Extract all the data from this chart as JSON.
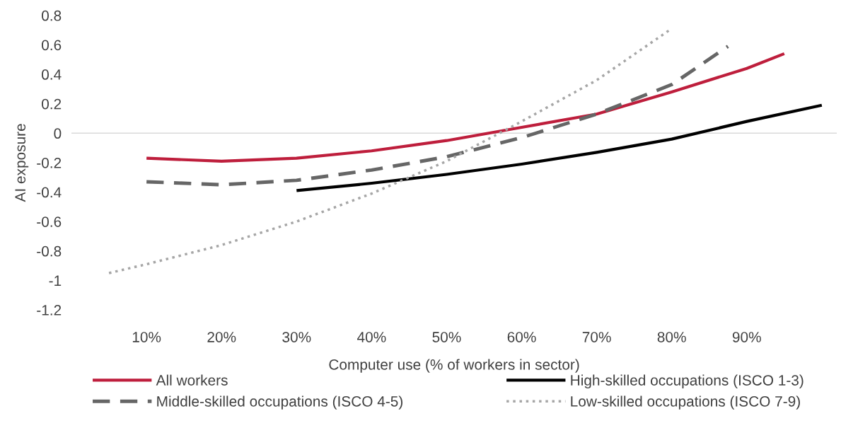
{
  "chart_data": {
    "type": "line",
    "xlabel": "Computer use (% of workers in sector)",
    "ylabel": "AI exposure",
    "xlim": [
      0,
      102
    ],
    "ylim": [
      -1.2,
      0.8
    ],
    "xticks": [
      {
        "value": 10,
        "label": "10%"
      },
      {
        "value": 20,
        "label": "20%"
      },
      {
        "value": 30,
        "label": "30%"
      },
      {
        "value": 40,
        "label": "40%"
      },
      {
        "value": 50,
        "label": "50%"
      },
      {
        "value": 60,
        "label": "60%"
      },
      {
        "value": 70,
        "label": "70%"
      },
      {
        "value": 80,
        "label": "80%"
      },
      {
        "value": 90,
        "label": "90%"
      }
    ],
    "yticks": [
      0.8,
      0.6,
      0.4,
      0.2,
      0,
      -0.2,
      -0.4,
      -0.6,
      -0.8,
      -1,
      -1.2
    ],
    "grid": false,
    "legend": "bottom",
    "marker": "none",
    "ref_lines": [
      {
        "axis": "y",
        "value": 0,
        "color": "#d9d9d9"
      }
    ],
    "series": [
      {
        "name": "All workers",
        "color": "#be1e3c",
        "line_style": "solid",
        "x": [
          10,
          20,
          30,
          40,
          50,
          60,
          70,
          80,
          90,
          95
        ],
        "values": [
          -0.17,
          -0.19,
          -0.17,
          -0.12,
          -0.05,
          0.04,
          0.13,
          0.28,
          0.44,
          0.54
        ]
      },
      {
        "name": "High-skilled occupations (ISCO 1-3)",
        "color": "#000000",
        "line_style": "solid",
        "x": [
          30,
          40,
          50,
          60,
          70,
          80,
          90,
          100
        ],
        "values": [
          -0.39,
          -0.34,
          -0.28,
          -0.21,
          -0.13,
          -0.04,
          0.08,
          0.19
        ]
      },
      {
        "name": "Middle-skilled occupations (ISCO 4-5)",
        "color": "#666666",
        "line_style": "dashed",
        "x": [
          10,
          20,
          30,
          40,
          50,
          60,
          70,
          80,
          87.5
        ],
        "values": [
          -0.33,
          -0.35,
          -0.32,
          -0.25,
          -0.16,
          -0.03,
          0.13,
          0.33,
          0.59
        ]
      },
      {
        "name": "Low-skilled occupations (ISCO 7-9)",
        "color": "#a6a6a6",
        "line_style": "dotted",
        "x": [
          5,
          10,
          20,
          30,
          40,
          50,
          60,
          70,
          79.7
        ],
        "values": [
          -0.95,
          -0.89,
          -0.76,
          -0.6,
          -0.41,
          -0.19,
          0.08,
          0.36,
          0.7
        ]
      }
    ]
  }
}
